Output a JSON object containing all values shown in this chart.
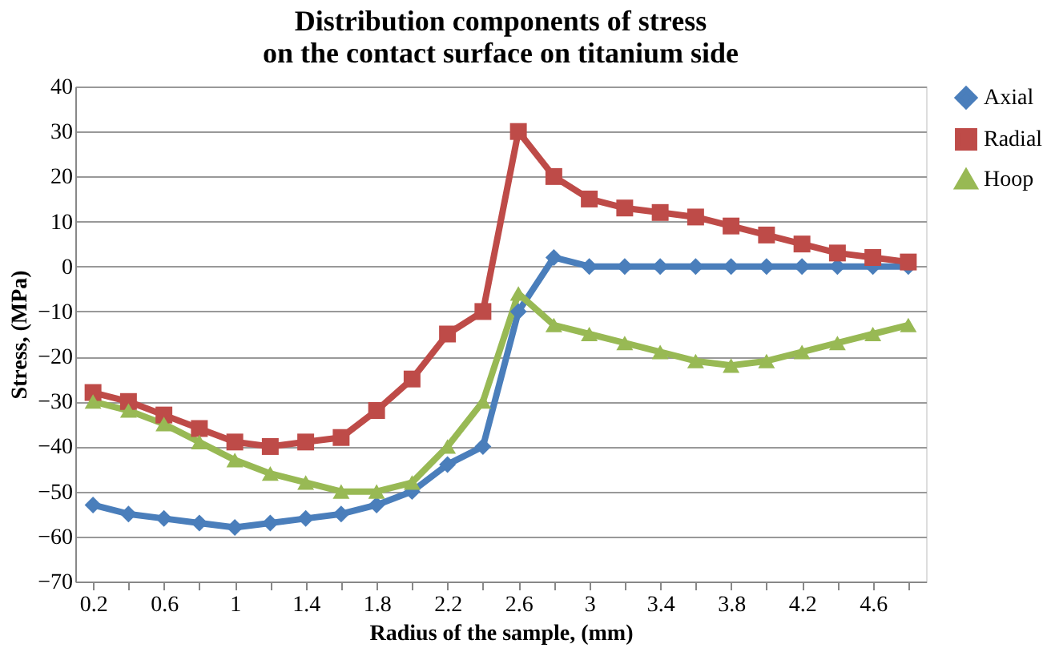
{
  "chart_data": {
    "type": "line",
    "title": "Distribution components of stress\non the contact surface on titanium side",
    "xlabel": "Radius of the sample, (mm)",
    "ylabel": "Stress, (MPa)",
    "categories": [
      "0.2",
      null,
      "0.6",
      null,
      "1",
      null,
      "1.4",
      null,
      "1.8",
      null,
      "2.2",
      null,
      "2.6",
      null,
      "3",
      null,
      "3.4",
      null,
      "3.8",
      null,
      "4.2",
      null,
      "4.6",
      null
    ],
    "series": [
      {
        "name": "Axial",
        "color": "#4a7ebb",
        "marker": "diamond",
        "values": [
          -53,
          -55,
          -56,
          -57,
          -58,
          -57,
          -56,
          -55,
          -53,
          -50,
          -44,
          -40,
          -10,
          2,
          0,
          0,
          0,
          0,
          0,
          0,
          0,
          0,
          0,
          0
        ]
      },
      {
        "name": "Radial",
        "color": "#be4b48",
        "marker": "square",
        "values": [
          -28,
          -30,
          -33,
          -36,
          -39,
          -40,
          -39,
          -38,
          -32,
          -25,
          -15,
          -10,
          30,
          20,
          15,
          13,
          12,
          11,
          9,
          7,
          5,
          3,
          2,
          1
        ]
      },
      {
        "name": "Hoop",
        "color": "#98b954",
        "marker": "triangle",
        "values": [
          -30,
          -32,
          -35,
          -39,
          -43,
          -46,
          -48,
          -50,
          -50,
          -48,
          -40,
          -30,
          -6,
          -13,
          -15,
          -17,
          -19,
          -21,
          -22,
          -21,
          -19,
          -17,
          -15,
          -13
        ]
      }
    ],
    "ylim": [
      -70,
      40
    ],
    "yticks": [
      -70,
      -60,
      -50,
      -40,
      -30,
      -20,
      -10,
      0,
      10,
      20,
      30,
      40
    ],
    "grid": "y",
    "legend": "right"
  }
}
